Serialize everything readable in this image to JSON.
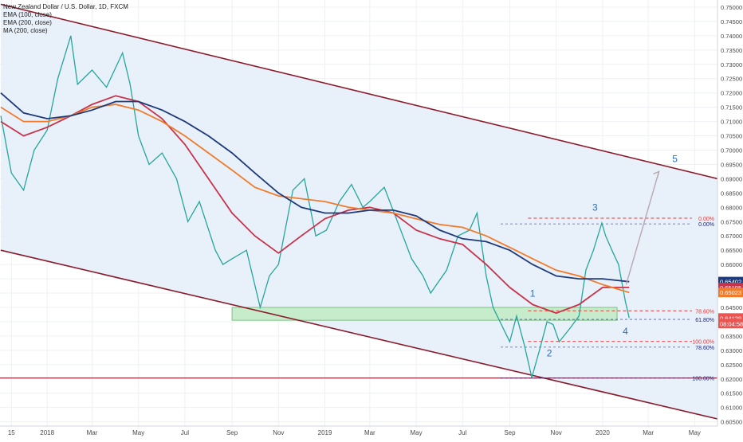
{
  "legend": {
    "symbol_line": "New Zealand Dollar / U.S. Dollar, 1D, FXCM",
    "ema100": "EMA (100, close)",
    "ema200": "EMA (200, close)",
    "ma200": "MA (200, close)"
  },
  "price_axis": {
    "ticks": [
      "0.75000",
      "0.74500",
      "0.74000",
      "0.73500",
      "0.73000",
      "0.72500",
      "0.72000",
      "0.71500",
      "0.71000",
      "0.70500",
      "0.70000",
      "0.69500",
      "0.69000",
      "0.68500",
      "0.68000",
      "0.67500",
      "0.67000",
      "0.66500",
      "0.66000",
      "0.65500",
      "0.65000",
      "0.64500",
      "0.64000",
      "0.63500",
      "0.63000",
      "0.62500",
      "0.62000",
      "0.61500",
      "0.61000",
      "0.60500"
    ],
    "badges": [
      {
        "label": "0.65402",
        "value": 0.65402,
        "color": "#1f3a7a"
      },
      {
        "label": "0.65195",
        "value": 0.65195,
        "color": "#c8334a"
      },
      {
        "label": "0.65023",
        "value": 0.65023,
        "color": "#f07c2b"
      },
      {
        "label": "0.64129",
        "value": 0.64129,
        "color": "#ef5350"
      },
      {
        "label": "08:04:58",
        "value": 0.63935,
        "color": "#ef5350"
      }
    ]
  },
  "time_axis": {
    "labels": [
      "15",
      "2018",
      "Mar",
      "May",
      "Jul",
      "Sep",
      "Nov",
      "2019",
      "Mar",
      "May",
      "Jul",
      "Sep",
      "Nov",
      "2020",
      "Mar",
      "May"
    ]
  },
  "fib_labels": [
    {
      "text": "0.00%",
      "price": 0.6762,
      "color": "#e53935"
    },
    {
      "text": "0.00%",
      "price": 0.6742,
      "color": "#1a237e"
    },
    {
      "text": "78.60%",
      "price": 0.6438,
      "color": "#e53935"
    },
    {
      "text": "61.80%",
      "price": 0.6408,
      "color": "#1a237e"
    },
    {
      "text": "100.00%",
      "price": 0.6331,
      "color": "#e53935"
    },
    {
      "text": "78.60%",
      "price": 0.6311,
      "color": "#1a237e"
    },
    {
      "text": "100.00%",
      "price": 0.6203,
      "color": "#1a237e"
    }
  ],
  "wave_labels": [
    {
      "text": "1",
      "x": "2019-10-01",
      "price": 0.6488
    },
    {
      "text": "2",
      "x": "2019-10-23",
      "price": 0.6278
    },
    {
      "text": "3",
      "x": "2019-12-22",
      "price": 0.6788
    },
    {
      "text": "4",
      "x": "2020-01-31",
      "price": 0.6355
    },
    {
      "text": "5",
      "x": "2020-04-05",
      "price": 0.6958
    }
  ],
  "chart_data": {
    "type": "line",
    "title": "New Zealand Dollar / U.S. Dollar, 1D, FXCM",
    "x_range": [
      "2017-10-31",
      "2020-05-31"
    ],
    "ylim": [
      0.6035,
      0.7525
    ],
    "grid": true,
    "series": [
      {
        "name": "NZDUSD",
        "color": "#26a69a",
        "values": [
          [
            "2017-11-01",
            0.712
          ],
          [
            "2017-11-15",
            0.692
          ],
          [
            "2017-12-01",
            0.686
          ],
          [
            "2017-12-15",
            0.7
          ],
          [
            "2018-01-01",
            0.707
          ],
          [
            "2018-01-15",
            0.725
          ],
          [
            "2018-02-01",
            0.74
          ],
          [
            "2018-02-10",
            0.723
          ],
          [
            "2018-03-01",
            0.728
          ],
          [
            "2018-03-20",
            0.722
          ],
          [
            "2018-04-10",
            0.734
          ],
          [
            "2018-04-20",
            0.723
          ],
          [
            "2018-05-01",
            0.705
          ],
          [
            "2018-05-15",
            0.695
          ],
          [
            "2018-06-01",
            0.699
          ],
          [
            "2018-06-20",
            0.69
          ],
          [
            "2018-07-05",
            0.675
          ],
          [
            "2018-07-20",
            0.682
          ],
          [
            "2018-08-10",
            0.665
          ],
          [
            "2018-08-20",
            0.66
          ],
          [
            "2018-09-01",
            0.662
          ],
          [
            "2018-09-20",
            0.665
          ],
          [
            "2018-10-08",
            0.645
          ],
          [
            "2018-10-20",
            0.656
          ],
          [
            "2018-11-01",
            0.66
          ],
          [
            "2018-11-20",
            0.686
          ],
          [
            "2018-12-05",
            0.69
          ],
          [
            "2018-12-20",
            0.67
          ],
          [
            "2019-01-03",
            0.672
          ],
          [
            "2019-01-20",
            0.682
          ],
          [
            "2019-02-05",
            0.688
          ],
          [
            "2019-02-20",
            0.68
          ],
          [
            "2019-03-01",
            0.682
          ],
          [
            "2019-03-20",
            0.687
          ],
          [
            "2019-04-05",
            0.676
          ],
          [
            "2019-04-25",
            0.662
          ],
          [
            "2019-05-10",
            0.656
          ],
          [
            "2019-05-20",
            0.65
          ],
          [
            "2019-06-10",
            0.658
          ],
          [
            "2019-06-25",
            0.67
          ],
          [
            "2019-07-10",
            0.672
          ],
          [
            "2019-07-20",
            0.678
          ],
          [
            "2019-08-01",
            0.656
          ],
          [
            "2019-08-10",
            0.645
          ],
          [
            "2019-09-01",
            0.633
          ],
          [
            "2019-09-10",
            0.642
          ],
          [
            "2019-09-20",
            0.632
          ],
          [
            "2019-09-30",
            0.6205
          ],
          [
            "2019-10-10",
            0.63
          ],
          [
            "2019-10-20",
            0.64
          ],
          [
            "2019-10-28",
            0.639
          ],
          [
            "2019-11-05",
            0.633
          ],
          [
            "2019-11-20",
            0.638
          ],
          [
            "2019-12-01",
            0.642
          ],
          [
            "2019-12-10",
            0.658
          ],
          [
            "2019-12-20",
            0.665
          ],
          [
            "2019-12-31",
            0.6745
          ],
          [
            "2020-01-05",
            0.67
          ],
          [
            "2020-01-15",
            0.664
          ],
          [
            "2020-01-22",
            0.66
          ],
          [
            "2020-01-31",
            0.647
          ],
          [
            "2020-02-05",
            0.6413
          ]
        ]
      },
      {
        "name": "EMA (100, close)",
        "color": "#c8334a",
        "values": [
          [
            "2017-11-01",
            0.71
          ],
          [
            "2017-12-01",
            0.705
          ],
          [
            "2018-01-01",
            0.708
          ],
          [
            "2018-02-01",
            0.712
          ],
          [
            "2018-03-01",
            0.716
          ],
          [
            "2018-04-01",
            0.719
          ],
          [
            "2018-05-01",
            0.717
          ],
          [
            "2018-06-01",
            0.711
          ],
          [
            "2018-07-01",
            0.702
          ],
          [
            "2018-08-01",
            0.69
          ],
          [
            "2018-09-01",
            0.678
          ],
          [
            "2018-10-01",
            0.67
          ],
          [
            "2018-11-01",
            0.664
          ],
          [
            "2018-12-01",
            0.67
          ],
          [
            "2019-01-01",
            0.676
          ],
          [
            "2019-02-01",
            0.679
          ],
          [
            "2019-03-01",
            0.68
          ],
          [
            "2019-04-01",
            0.678
          ],
          [
            "2019-05-01",
            0.672
          ],
          [
            "2019-06-01",
            0.669
          ],
          [
            "2019-07-01",
            0.667
          ],
          [
            "2019-08-01",
            0.66
          ],
          [
            "2019-09-01",
            0.652
          ],
          [
            "2019-10-01",
            0.646
          ],
          [
            "2019-11-01",
            0.643
          ],
          [
            "2019-12-01",
            0.646
          ],
          [
            "2020-01-01",
            0.652
          ],
          [
            "2020-02-05",
            0.652
          ]
        ]
      },
      {
        "name": "EMA (200, close)",
        "color": "#f07c2b",
        "values": [
          [
            "2017-11-01",
            0.715
          ],
          [
            "2017-12-01",
            0.71
          ],
          [
            "2018-01-01",
            0.71
          ],
          [
            "2018-02-01",
            0.712
          ],
          [
            "2018-03-01",
            0.715
          ],
          [
            "2018-04-01",
            0.716
          ],
          [
            "2018-05-01",
            0.714
          ],
          [
            "2018-06-01",
            0.71
          ],
          [
            "2018-07-01",
            0.705
          ],
          [
            "2018-08-01",
            0.699
          ],
          [
            "2018-09-01",
            0.693
          ],
          [
            "2018-10-01",
            0.687
          ],
          [
            "2018-11-01",
            0.684
          ],
          [
            "2018-12-01",
            0.683
          ],
          [
            "2019-01-01",
            0.682
          ],
          [
            "2019-02-01",
            0.68
          ],
          [
            "2019-03-01",
            0.679
          ],
          [
            "2019-04-01",
            0.678
          ],
          [
            "2019-05-01",
            0.676
          ],
          [
            "2019-06-01",
            0.674
          ],
          [
            "2019-07-01",
            0.673
          ],
          [
            "2019-08-01",
            0.67
          ],
          [
            "2019-09-01",
            0.666
          ],
          [
            "2019-10-01",
            0.662
          ],
          [
            "2019-11-01",
            0.658
          ],
          [
            "2019-12-01",
            0.656
          ],
          [
            "2020-01-01",
            0.653
          ],
          [
            "2020-02-05",
            0.6502
          ]
        ]
      },
      {
        "name": "MA (200, close)",
        "color": "#1f3a7a",
        "values": [
          [
            "2017-11-01",
            0.72
          ],
          [
            "2017-12-01",
            0.713
          ],
          [
            "2018-01-01",
            0.711
          ],
          [
            "2018-02-01",
            0.712
          ],
          [
            "2018-03-01",
            0.714
          ],
          [
            "2018-04-01",
            0.717
          ],
          [
            "2018-05-01",
            0.717
          ],
          [
            "2018-06-01",
            0.714
          ],
          [
            "2018-07-01",
            0.71
          ],
          [
            "2018-08-01",
            0.705
          ],
          [
            "2018-09-01",
            0.699
          ],
          [
            "2018-10-01",
            0.692
          ],
          [
            "2018-11-01",
            0.685
          ],
          [
            "2018-12-01",
            0.68
          ],
          [
            "2019-01-01",
            0.678
          ],
          [
            "2019-02-01",
            0.678
          ],
          [
            "2019-03-01",
            0.679
          ],
          [
            "2019-04-01",
            0.679
          ],
          [
            "2019-05-01",
            0.677
          ],
          [
            "2019-06-01",
            0.672
          ],
          [
            "2019-07-01",
            0.669
          ],
          [
            "2019-08-01",
            0.668
          ],
          [
            "2019-09-01",
            0.665
          ],
          [
            "2019-10-01",
            0.66
          ],
          [
            "2019-11-01",
            0.656
          ],
          [
            "2019-12-01",
            0.655
          ],
          [
            "2020-01-01",
            0.655
          ],
          [
            "2020-02-05",
            0.654
          ]
        ]
      }
    ],
    "annotations": {
      "channel": {
        "upper": [
          [
            "2017-11-01",
            0.751
          ],
          [
            "2020-05-31",
            0.69
          ]
        ],
        "lower": [
          [
            "2017-11-01",
            0.665
          ],
          [
            "2020-05-31",
            0.606
          ]
        ],
        "fill": "#e6eef9",
        "line_color": "#8b1a2b"
      },
      "support_zone": {
        "x": [
          "2018-09-01",
          "2020-01-20"
        ],
        "y": [
          0.6405,
          0.645
        ],
        "color": "#c7eccc"
      },
      "horizontal_line": {
        "price": 0.6203,
        "color": "#8b1a2b"
      },
      "fib_lines_red": [
        0.6762,
        0.6438,
        0.6331
      ],
      "fib_lines_blue": [
        0.6742,
        0.6408,
        0.6311,
        0.6203
      ],
      "projection_arrow": [
        [
          "2020-02-01",
          0.653
        ],
        [
          "2020-03-15",
          0.6925
        ]
      ]
    }
  }
}
